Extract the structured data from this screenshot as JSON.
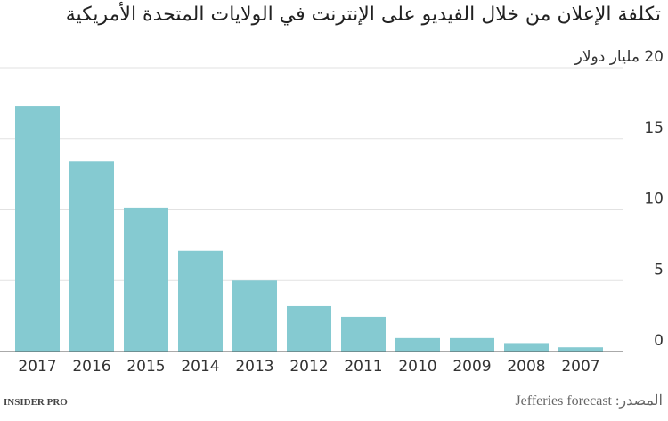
{
  "chart_data": {
    "type": "bar",
    "title": "تكلفة الإعلان من خلال الفيديو على الإنترنت في الولايات المتحدة الأمريكية",
    "categories": [
      "2017",
      "2016",
      "2015",
      "2014",
      "2013",
      "2012",
      "2011",
      "2010",
      "2009",
      "2008",
      "2007"
    ],
    "values": [
      17.3,
      13.4,
      10.1,
      7.1,
      5.0,
      3.2,
      2.45,
      0.95,
      0.95,
      0.6,
      0.3
    ],
    "color": "#85cad1",
    "ylim": [
      0,
      20
    ],
    "yticks": [
      0,
      5,
      10,
      15,
      {
        "value": 20,
        "label": "20 مليار دولار"
      }
    ],
    "grid": true,
    "source": "المصدر: Jefferies forecast",
    "logo": "INSIDER PRO"
  }
}
